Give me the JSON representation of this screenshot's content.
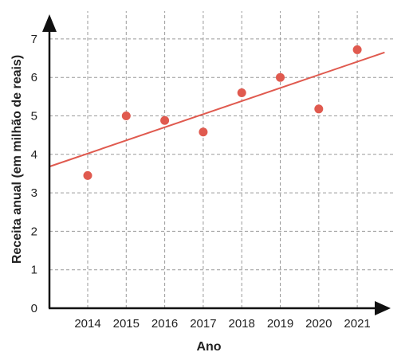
{
  "chart_data": {
    "type": "scatter",
    "title": "",
    "xlabel": "Ano",
    "ylabel": "Receita anual (em milhão de reais)",
    "x": [
      "2014",
      "2015",
      "2016",
      "2017",
      "2018",
      "2019",
      "2020",
      "2021"
    ],
    "y": [
      3.45,
      5.0,
      4.88,
      4.58,
      5.6,
      6.0,
      5.18,
      6.72
    ],
    "yticks": [
      "0",
      "1",
      "2",
      "3",
      "4",
      "5",
      "6",
      "7"
    ],
    "ylim": [
      0,
      7.7
    ],
    "grid": true,
    "trendline": {
      "start": {
        "x": "2013",
        "y": 3.68
      },
      "end": {
        "x": "2022",
        "y": 6.65
      }
    },
    "colors": {
      "points": "#e05a4f",
      "trendline": "#e05a4f",
      "grid": "#9a9a9a",
      "axes": "#111111"
    }
  }
}
